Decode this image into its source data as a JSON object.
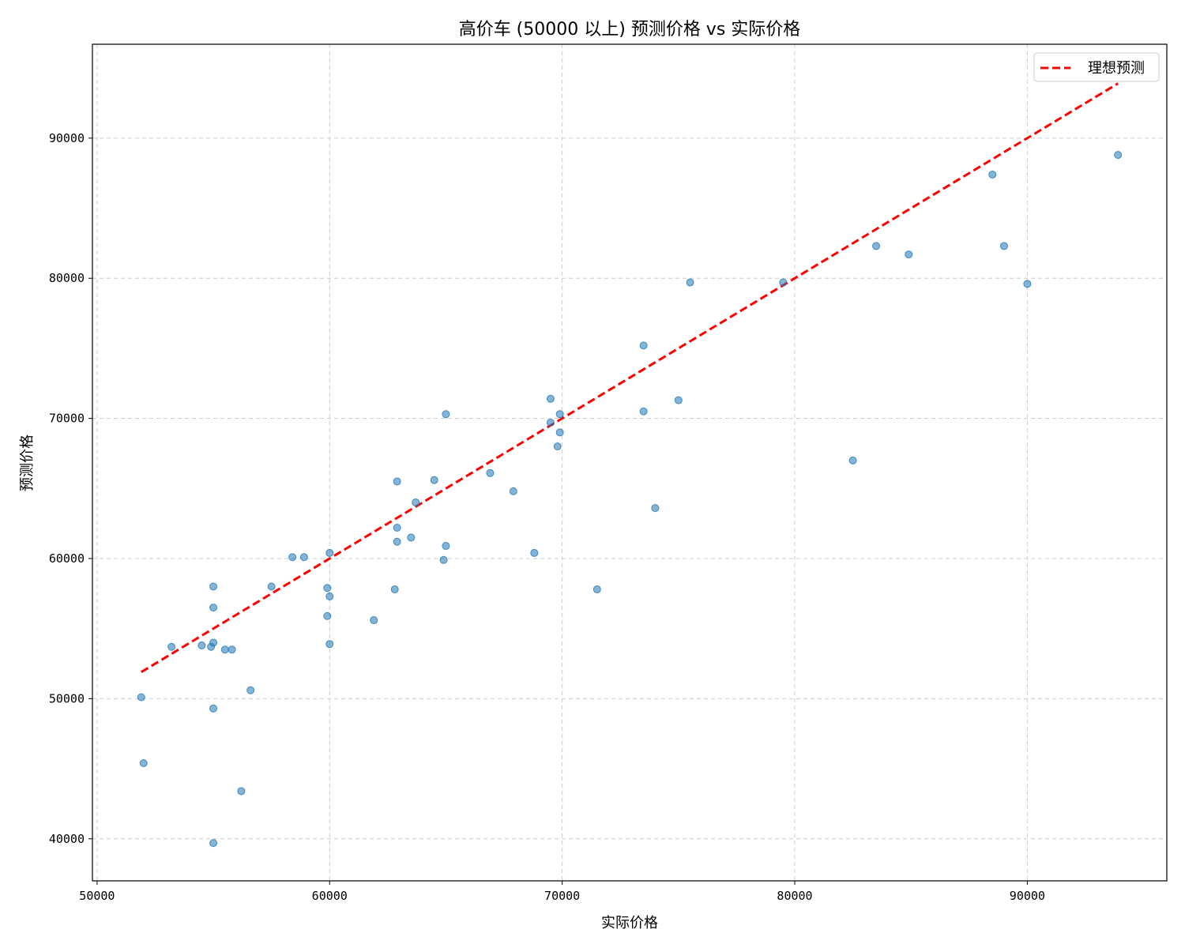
{
  "chart_data": {
    "type": "scatter",
    "title": "高价车 (50000 以上) 预测价格 vs 实际价格",
    "xlabel": "实际价格",
    "ylabel": "预测价格",
    "xlim": [
      49800,
      96000
    ],
    "ylim": [
      37000,
      96700
    ],
    "xticks": [
      50000,
      60000,
      70000,
      80000,
      90000
    ],
    "yticks": [
      40000,
      50000,
      60000,
      70000,
      80000,
      90000
    ],
    "grid": true,
    "legend_position": "top-right",
    "colors": {
      "points": "#1f77b4",
      "ideal_line": "#ff0000",
      "grid": "#cccccc"
    },
    "reference_line": {
      "name": "理想预测",
      "x": [
        51900,
        93900
      ],
      "y": [
        51900,
        93900
      ]
    },
    "points": [
      [
        51900,
        50100
      ],
      [
        52000,
        45400
      ],
      [
        53200,
        53700
      ],
      [
        54500,
        53800
      ],
      [
        54900,
        53700
      ],
      [
        55000,
        54000
      ],
      [
        55000,
        58000
      ],
      [
        55000,
        56500
      ],
      [
        55000,
        49300
      ],
      [
        55000,
        39700
      ],
      [
        55500,
        53500
      ],
      [
        55800,
        53500
      ],
      [
        56200,
        43400
      ],
      [
        56600,
        50600
      ],
      [
        57500,
        58000
      ],
      [
        58400,
        60100
      ],
      [
        58900,
        60100
      ],
      [
        59900,
        57900
      ],
      [
        59900,
        55900
      ],
      [
        60000,
        60400
      ],
      [
        60000,
        57300
      ],
      [
        60000,
        53900
      ],
      [
        61900,
        55600
      ],
      [
        62800,
        57800
      ],
      [
        62900,
        65500
      ],
      [
        62900,
        62200
      ],
      [
        62900,
        61200
      ],
      [
        63500,
        61500
      ],
      [
        63700,
        64000
      ],
      [
        64500,
        65600
      ],
      [
        64900,
        59900
      ],
      [
        65000,
        70300
      ],
      [
        65000,
        60900
      ],
      [
        66900,
        66100
      ],
      [
        67900,
        64800
      ],
      [
        68800,
        60400
      ],
      [
        69500,
        71400
      ],
      [
        69500,
        69700
      ],
      [
        69900,
        70300
      ],
      [
        69900,
        69000
      ],
      [
        69800,
        68000
      ],
      [
        71500,
        57800
      ],
      [
        73500,
        75200
      ],
      [
        73500,
        70500
      ],
      [
        74000,
        63600
      ],
      [
        75000,
        71300
      ],
      [
        75500,
        79700
      ],
      [
        79500,
        79700
      ],
      [
        82500,
        67000
      ],
      [
        83500,
        82300
      ],
      [
        84900,
        81700
      ],
      [
        88500,
        87400
      ],
      [
        89000,
        82300
      ],
      [
        90000,
        79600
      ],
      [
        93900,
        88800
      ]
    ]
  }
}
